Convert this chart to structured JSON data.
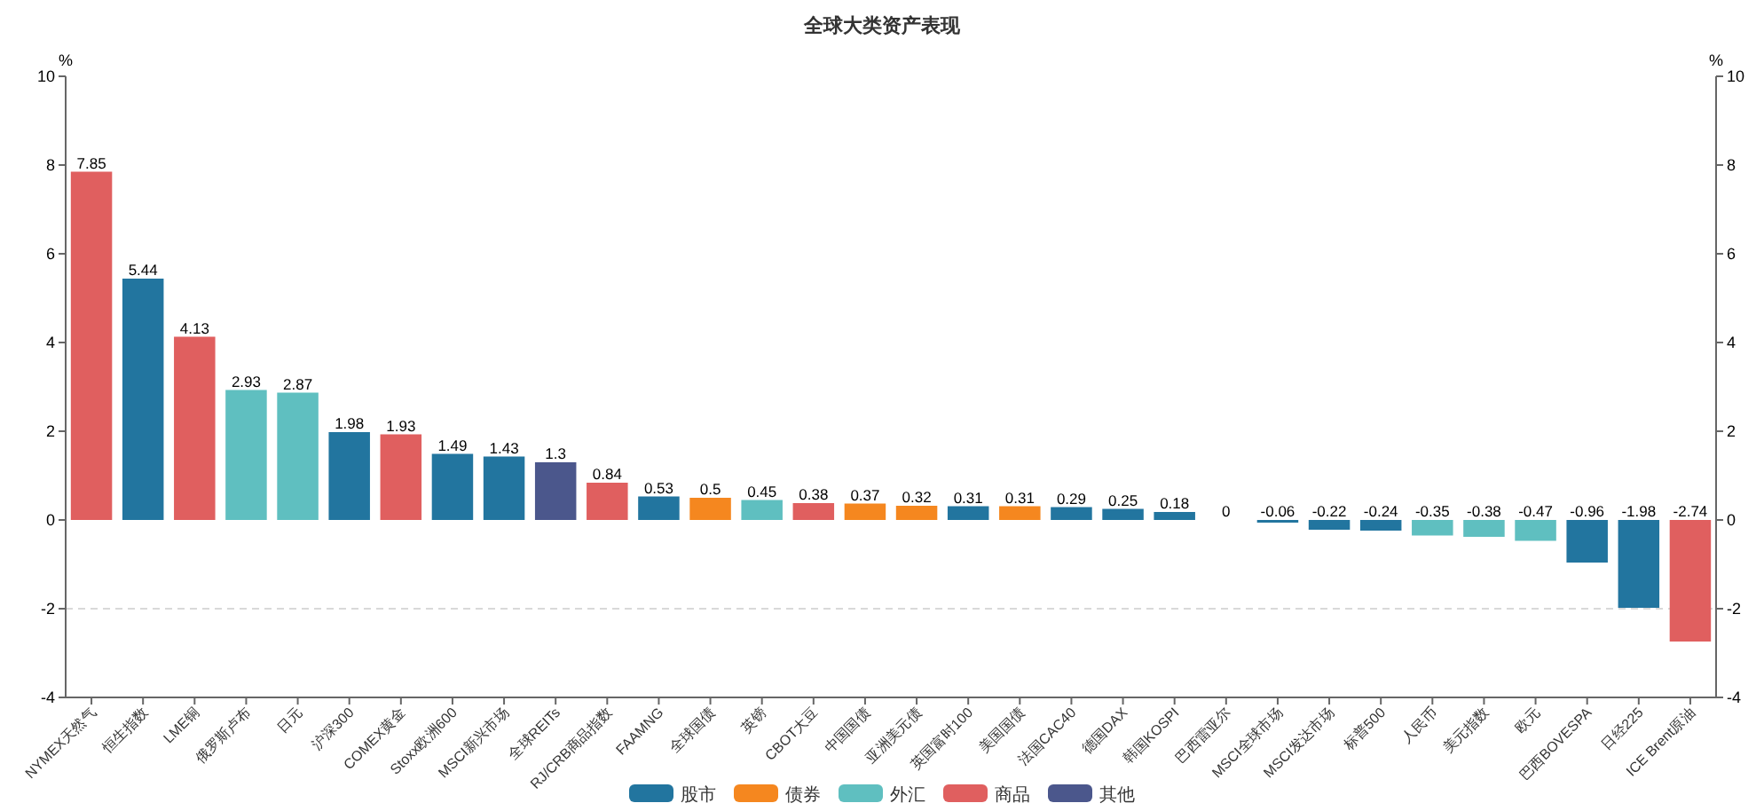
{
  "chart_data": {
    "type": "bar",
    "title": "全球大类资产表现",
    "ylabel": "%",
    "y2label": "%",
    "categories": [
      "NYMEX天然气",
      "恒生指数",
      "LME铜",
      "俄罗斯卢布",
      "日元",
      "沪深300",
      "COMEX黄金",
      "Stoxx欧洲600",
      "MSCI新兴市场",
      "全球REITs",
      "RJ/CRB商品指数",
      "FAAMNG",
      "全球国债",
      "英镑",
      "CBOT大豆",
      "中国国债",
      "亚洲美元债",
      "英国富时100",
      "美国国债",
      "法国CAC40",
      "德国DAX",
      "韩国KOSPI",
      "巴西雷亚尔",
      "MSCI全球市场",
      "MSCI发达市场",
      "标普500",
      "人民币",
      "美元指数",
      "欧元",
      "巴西BOVESPA",
      "日经225",
      "ICE Brent原油"
    ],
    "series": [
      {
        "name": "股市",
        "color": "#22759f",
        "values": [
          null,
          5.44,
          null,
          null,
          null,
          1.98,
          null,
          1.49,
          1.43,
          null,
          null,
          0.53,
          null,
          null,
          null,
          null,
          null,
          0.31,
          null,
          0.29,
          0.25,
          0.18,
          null,
          -0.06,
          -0.22,
          -0.24,
          null,
          null,
          null,
          -0.96,
          -1.98,
          null
        ]
      },
      {
        "name": "债券",
        "color": "#f5871f",
        "values": [
          null,
          null,
          null,
          null,
          null,
          null,
          null,
          null,
          null,
          null,
          null,
          null,
          0.5,
          null,
          null,
          0.37,
          0.32,
          null,
          0.31,
          null,
          null,
          null,
          null,
          null,
          null,
          null,
          null,
          null,
          null,
          null,
          null,
          null
        ]
      },
      {
        "name": "外汇",
        "color": "#5fbfc0",
        "values": [
          null,
          null,
          null,
          2.93,
          2.87,
          null,
          null,
          null,
          null,
          null,
          null,
          null,
          null,
          0.45,
          null,
          null,
          null,
          null,
          null,
          null,
          null,
          null,
          0,
          null,
          null,
          null,
          -0.35,
          -0.38,
          -0.47,
          null,
          null,
          null
        ]
      },
      {
        "name": "商品",
        "color": "#e05f5f",
        "values": [
          7.85,
          null,
          4.13,
          null,
          null,
          null,
          1.93,
          null,
          null,
          null,
          0.84,
          null,
          null,
          null,
          0.38,
          null,
          null,
          null,
          null,
          null,
          null,
          null,
          null,
          null,
          null,
          null,
          null,
          null,
          null,
          null,
          null,
          -2.74
        ]
      },
      {
        "name": "其他",
        "color": "#4b578c",
        "values": [
          null,
          null,
          null,
          null,
          null,
          null,
          null,
          null,
          null,
          1.3,
          null,
          null,
          null,
          null,
          null,
          null,
          null,
          null,
          null,
          null,
          null,
          null,
          null,
          null,
          null,
          null,
          null,
          null,
          null,
          null,
          null,
          null
        ]
      }
    ],
    "stacked": true,
    "data_labels": true,
    "legend": "bottom",
    "ylim": [
      -4,
      10
    ],
    "yticks": [
      -4,
      -2,
      0,
      2,
      4,
      6,
      8,
      10
    ],
    "y2lim": [
      -4,
      10
    ],
    "y2ticks": [
      -4,
      -2,
      0,
      2,
      4,
      6,
      8,
      10
    ],
    "ref_lines": [
      {
        "axis": "y",
        "value": -2,
        "color": "#d9d9d9",
        "line_style": "dashed"
      }
    ]
  }
}
